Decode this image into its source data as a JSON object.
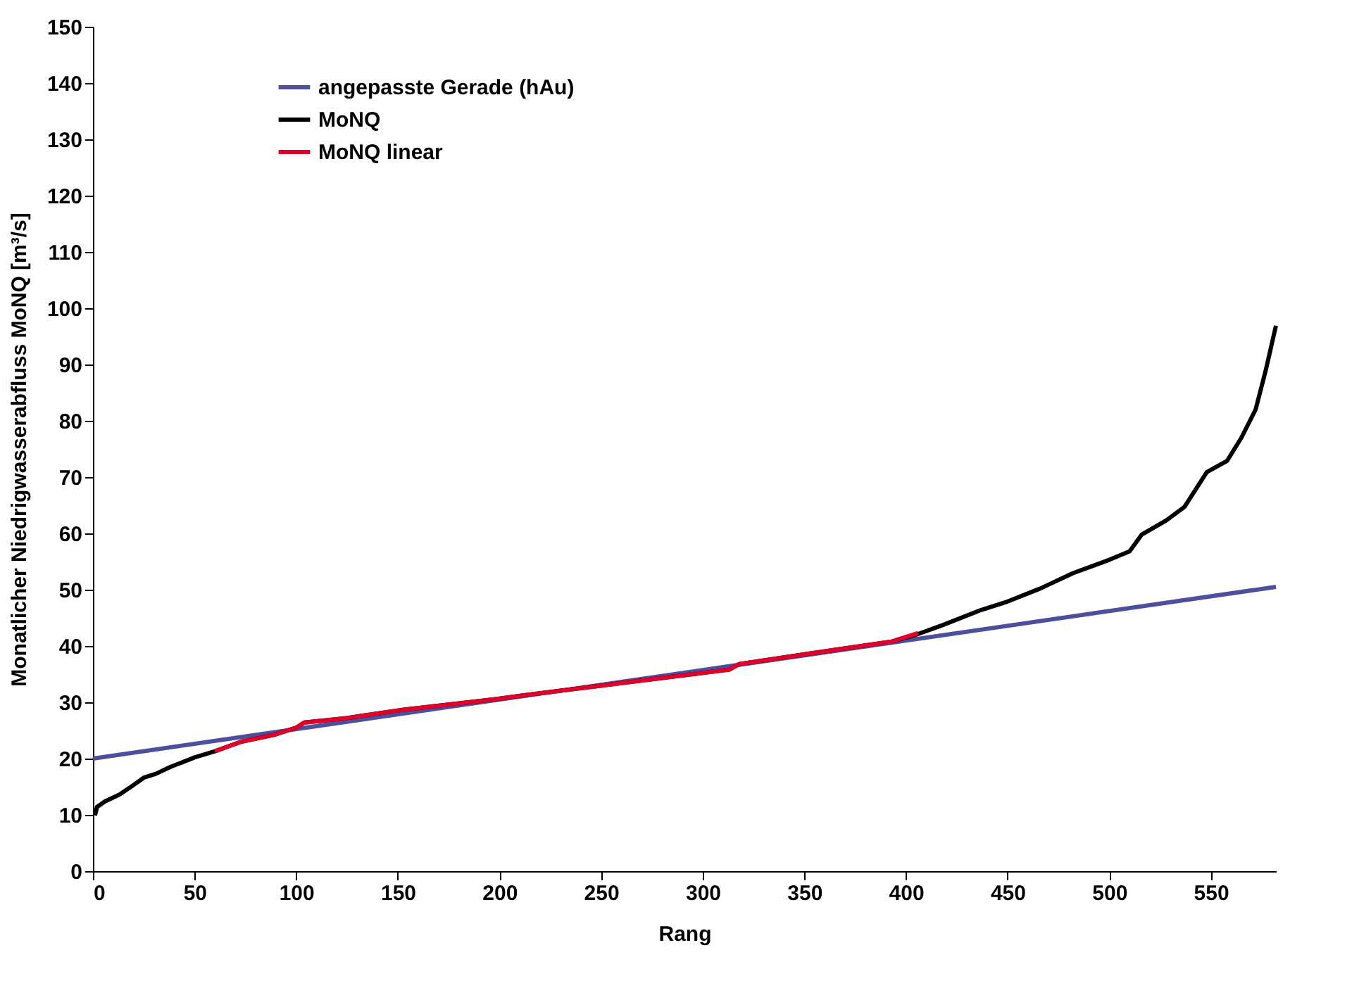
{
  "chart_data": {
    "type": "line",
    "xlabel": "Rang",
    "ylabel": "Monatlicher Niedrigwasserabfluss MoNQ [m³/s]",
    "xlim": [
      0,
      582
    ],
    "xticks": [
      0,
      50,
      100,
      150,
      200,
      250,
      300,
      350,
      400,
      450,
      500,
      550
    ],
    "ylim": [
      0,
      150
    ],
    "yticks": [
      0,
      10,
      20,
      30,
      40,
      50,
      60,
      70,
      80,
      90,
      100,
      110,
      120,
      130,
      140,
      150
    ],
    "grid": false,
    "legend": "top left",
    "marker": "none",
    "line_style": "solid",
    "series": [
      {
        "name": "angepasste Gerade (hAu)",
        "color": "#4b4f9e",
        "x": [
          0,
          582
        ],
        "values": [
          20,
          50.5
        ]
      },
      {
        "name": "MoNQ",
        "color": "#000000",
        "x": [
          1,
          2,
          6,
          13,
          18,
          25,
          31,
          38,
          50,
          60,
          73,
          89,
          100,
          104,
          125,
          153,
          187,
          199,
          211,
          249,
          313,
          318,
          359,
          393,
          405,
          418,
          437,
          450,
          466,
          482,
          500,
          510,
          516,
          528,
          537,
          548,
          558,
          565,
          572,
          577,
          582
        ],
        "values": [
          9.9,
          11.4,
          12.4,
          13.6,
          14.8,
          16.6,
          17.3,
          18.5,
          20.2,
          21.3,
          23,
          24.2,
          25.5,
          26.4,
          27.2,
          28.7,
          30.1,
          30.6,
          31.2,
          32.9,
          35.8,
          36.8,
          39,
          40.8,
          42,
          43.7,
          46.4,
          47.9,
          50.2,
          52.9,
          55.3,
          56.8,
          59.8,
          62.3,
          64.7,
          70.9,
          72.9,
          77,
          82,
          89,
          96.9
        ]
      },
      {
        "name": "MoNQ linear",
        "color": "#e0002a",
        "x": [
          60,
          73,
          89,
          100,
          104,
          125,
          153,
          187,
          199,
          211,
          249,
          313,
          318,
          359,
          393,
          406
        ],
        "values": [
          21.3,
          23,
          24.2,
          25.5,
          26.4,
          27.2,
          28.7,
          30.1,
          30.6,
          31.2,
          32.9,
          35.8,
          36.8,
          39,
          40.8,
          42.3
        ]
      }
    ]
  }
}
